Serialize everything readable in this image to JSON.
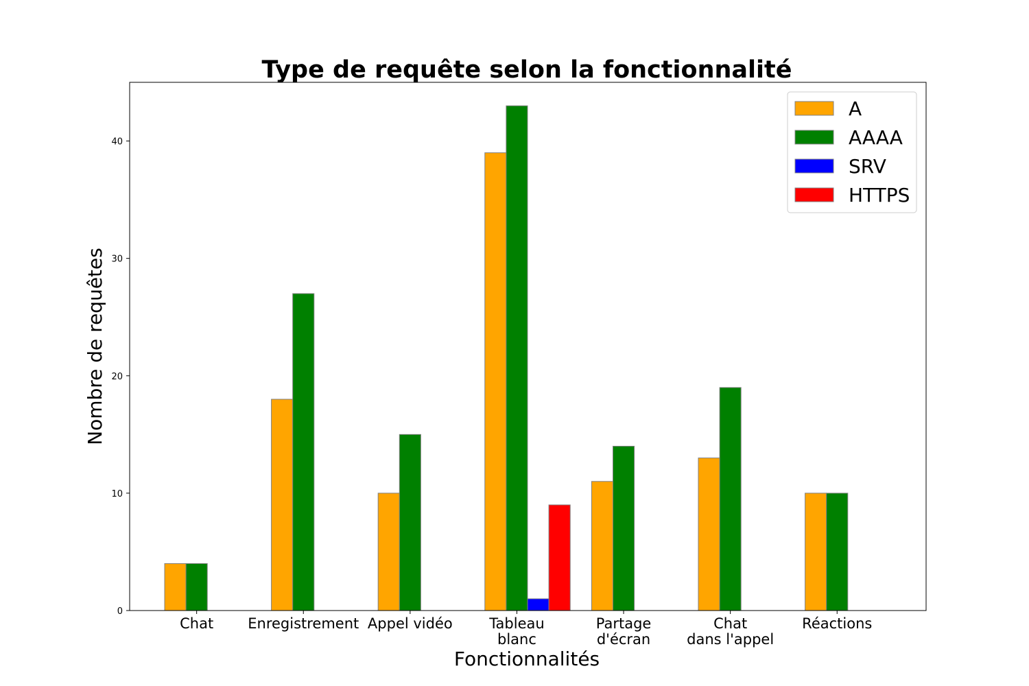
{
  "chart_data": {
    "type": "bar",
    "title": "Type de requête selon la fonctionnalité",
    "xlabel": "Fonctionnalités",
    "ylabel": "Nombre de requêtes",
    "categories": [
      [
        "Chat"
      ],
      [
        "Enregistrement"
      ],
      [
        "Appel vidéo"
      ],
      [
        "Tableau",
        "blanc"
      ],
      [
        "Partage",
        "d'écran"
      ],
      [
        "Chat",
        "dans l'appel"
      ],
      [
        "Réactions"
      ]
    ],
    "series": [
      {
        "name": "A",
        "color": "#FFA500",
        "values": [
          4,
          18,
          10,
          39,
          11,
          13,
          10
        ]
      },
      {
        "name": "AAAA",
        "color": "#008000",
        "values": [
          4,
          27,
          15,
          43,
          14,
          19,
          10
        ]
      },
      {
        "name": "SRV",
        "color": "#0000FF",
        "values": [
          0,
          0,
          0,
          1,
          0,
          0,
          0
        ]
      },
      {
        "name": "HTTPS",
        "color": "#FF0000",
        "values": [
          0,
          0,
          0,
          9,
          0,
          0,
          0
        ]
      }
    ],
    "ylim": [
      0,
      45
    ],
    "yticks": [
      0,
      10,
      20,
      30,
      40
    ],
    "grid": false,
    "legend_position": "top-right"
  }
}
